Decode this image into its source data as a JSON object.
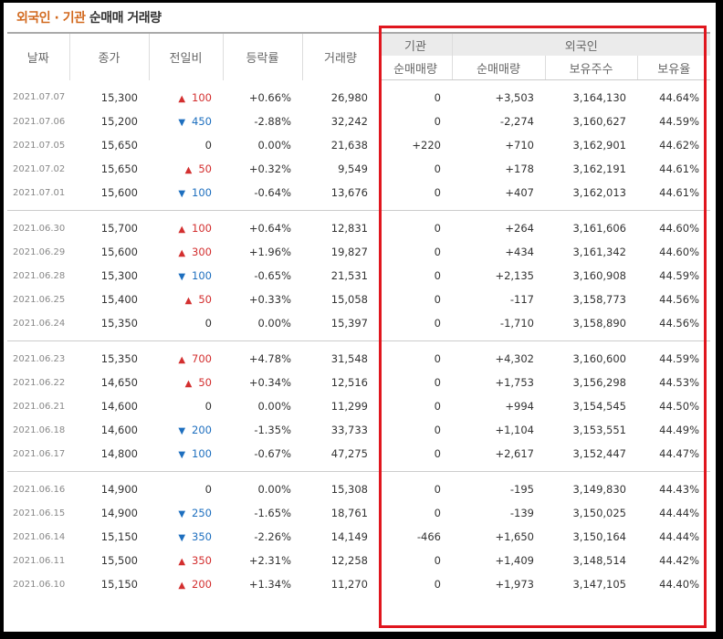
{
  "title": {
    "foreign_inst": "외국인 · 기관",
    "net_volume": "순매매 거래량"
  },
  "header": {
    "date": "날짜",
    "close": "종가",
    "change": "전일비",
    "rate": "등락률",
    "volume": "거래량",
    "inst_group": "기관",
    "foreign_group": "외국인",
    "inst_net": "순매매량",
    "foreign_net": "순매매량",
    "holdings": "보유주수",
    "hold_ratio": "보유율"
  },
  "colors": {
    "up": "#d32f2f",
    "down": "#1e6fbf",
    "highlight_box": "#e0161e",
    "title_accent": "#d2691e"
  },
  "groups": [
    [
      {
        "date": "2021.07.07",
        "close": "15,300",
        "dir": "up",
        "chg": "100",
        "rate": "+0.66%",
        "vol": "26,980",
        "inst": "0",
        "frn": "+3,503",
        "hold": "3,164,130",
        "ratio": "44.64%"
      },
      {
        "date": "2021.07.06",
        "close": "15,200",
        "dir": "down",
        "chg": "450",
        "rate": "-2.88%",
        "vol": "32,242",
        "inst": "0",
        "frn": "-2,274",
        "hold": "3,160,627",
        "ratio": "44.59%"
      },
      {
        "date": "2021.07.05",
        "close": "15,650",
        "dir": "none",
        "chg": "0",
        "rate": "0.00%",
        "vol": "21,638",
        "inst": "+220",
        "frn": "+710",
        "hold": "3,162,901",
        "ratio": "44.62%"
      },
      {
        "date": "2021.07.02",
        "close": "15,650",
        "dir": "up",
        "chg": "50",
        "rate": "+0.32%",
        "vol": "9,549",
        "inst": "0",
        "frn": "+178",
        "hold": "3,162,191",
        "ratio": "44.61%"
      },
      {
        "date": "2021.07.01",
        "close": "15,600",
        "dir": "down",
        "chg": "100",
        "rate": "-0.64%",
        "vol": "13,676",
        "inst": "0",
        "frn": "+407",
        "hold": "3,162,013",
        "ratio": "44.61%"
      }
    ],
    [
      {
        "date": "2021.06.30",
        "close": "15,700",
        "dir": "up",
        "chg": "100",
        "rate": "+0.64%",
        "vol": "12,831",
        "inst": "0",
        "frn": "+264",
        "hold": "3,161,606",
        "ratio": "44.60%"
      },
      {
        "date": "2021.06.29",
        "close": "15,600",
        "dir": "up",
        "chg": "300",
        "rate": "+1.96%",
        "vol": "19,827",
        "inst": "0",
        "frn": "+434",
        "hold": "3,161,342",
        "ratio": "44.60%"
      },
      {
        "date": "2021.06.28",
        "close": "15,300",
        "dir": "down",
        "chg": "100",
        "rate": "-0.65%",
        "vol": "21,531",
        "inst": "0",
        "frn": "+2,135",
        "hold": "3,160,908",
        "ratio": "44.59%"
      },
      {
        "date": "2021.06.25",
        "close": "15,400",
        "dir": "up",
        "chg": "50",
        "rate": "+0.33%",
        "vol": "15,058",
        "inst": "0",
        "frn": "-117",
        "hold": "3,158,773",
        "ratio": "44.56%"
      },
      {
        "date": "2021.06.24",
        "close": "15,350",
        "dir": "none",
        "chg": "0",
        "rate": "0.00%",
        "vol": "15,397",
        "inst": "0",
        "frn": "-1,710",
        "hold": "3,158,890",
        "ratio": "44.56%"
      }
    ],
    [
      {
        "date": "2021.06.23",
        "close": "15,350",
        "dir": "up",
        "chg": "700",
        "rate": "+4.78%",
        "vol": "31,548",
        "inst": "0",
        "frn": "+4,302",
        "hold": "3,160,600",
        "ratio": "44.59%"
      },
      {
        "date": "2021.06.22",
        "close": "14,650",
        "dir": "up",
        "chg": "50",
        "rate": "+0.34%",
        "vol": "12,516",
        "inst": "0",
        "frn": "+1,753",
        "hold": "3,156,298",
        "ratio": "44.53%"
      },
      {
        "date": "2021.06.21",
        "close": "14,600",
        "dir": "none",
        "chg": "0",
        "rate": "0.00%",
        "vol": "11,299",
        "inst": "0",
        "frn": "+994",
        "hold": "3,154,545",
        "ratio": "44.50%"
      },
      {
        "date": "2021.06.18",
        "close": "14,600",
        "dir": "down",
        "chg": "200",
        "rate": "-1.35%",
        "vol": "33,733",
        "inst": "0",
        "frn": "+1,104",
        "hold": "3,153,551",
        "ratio": "44.49%"
      },
      {
        "date": "2021.06.17",
        "close": "14,800",
        "dir": "down",
        "chg": "100",
        "rate": "-0.67%",
        "vol": "47,275",
        "inst": "0",
        "frn": "+2,617",
        "hold": "3,152,447",
        "ratio": "44.47%"
      }
    ],
    [
      {
        "date": "2021.06.16",
        "close": "14,900",
        "dir": "none",
        "chg": "0",
        "rate": "0.00%",
        "vol": "15,308",
        "inst": "0",
        "frn": "-195",
        "hold": "3,149,830",
        "ratio": "44.43%"
      },
      {
        "date": "2021.06.15",
        "close": "14,900",
        "dir": "down",
        "chg": "250",
        "rate": "-1.65%",
        "vol": "18,761",
        "inst": "0",
        "frn": "-139",
        "hold": "3,150,025",
        "ratio": "44.44%"
      },
      {
        "date": "2021.06.14",
        "close": "15,150",
        "dir": "down",
        "chg": "350",
        "rate": "-2.26%",
        "vol": "14,149",
        "inst": "-466",
        "frn": "+1,650",
        "hold": "3,150,164",
        "ratio": "44.44%"
      },
      {
        "date": "2021.06.11",
        "close": "15,500",
        "dir": "up",
        "chg": "350",
        "rate": "+2.31%",
        "vol": "12,258",
        "inst": "0",
        "frn": "+1,409",
        "hold": "3,148,514",
        "ratio": "44.42%"
      },
      {
        "date": "2021.06.10",
        "close": "15,150",
        "dir": "up",
        "chg": "200",
        "rate": "+1.34%",
        "vol": "11,270",
        "inst": "0",
        "frn": "+1,973",
        "hold": "3,147,105",
        "ratio": "44.40%"
      }
    ]
  ]
}
